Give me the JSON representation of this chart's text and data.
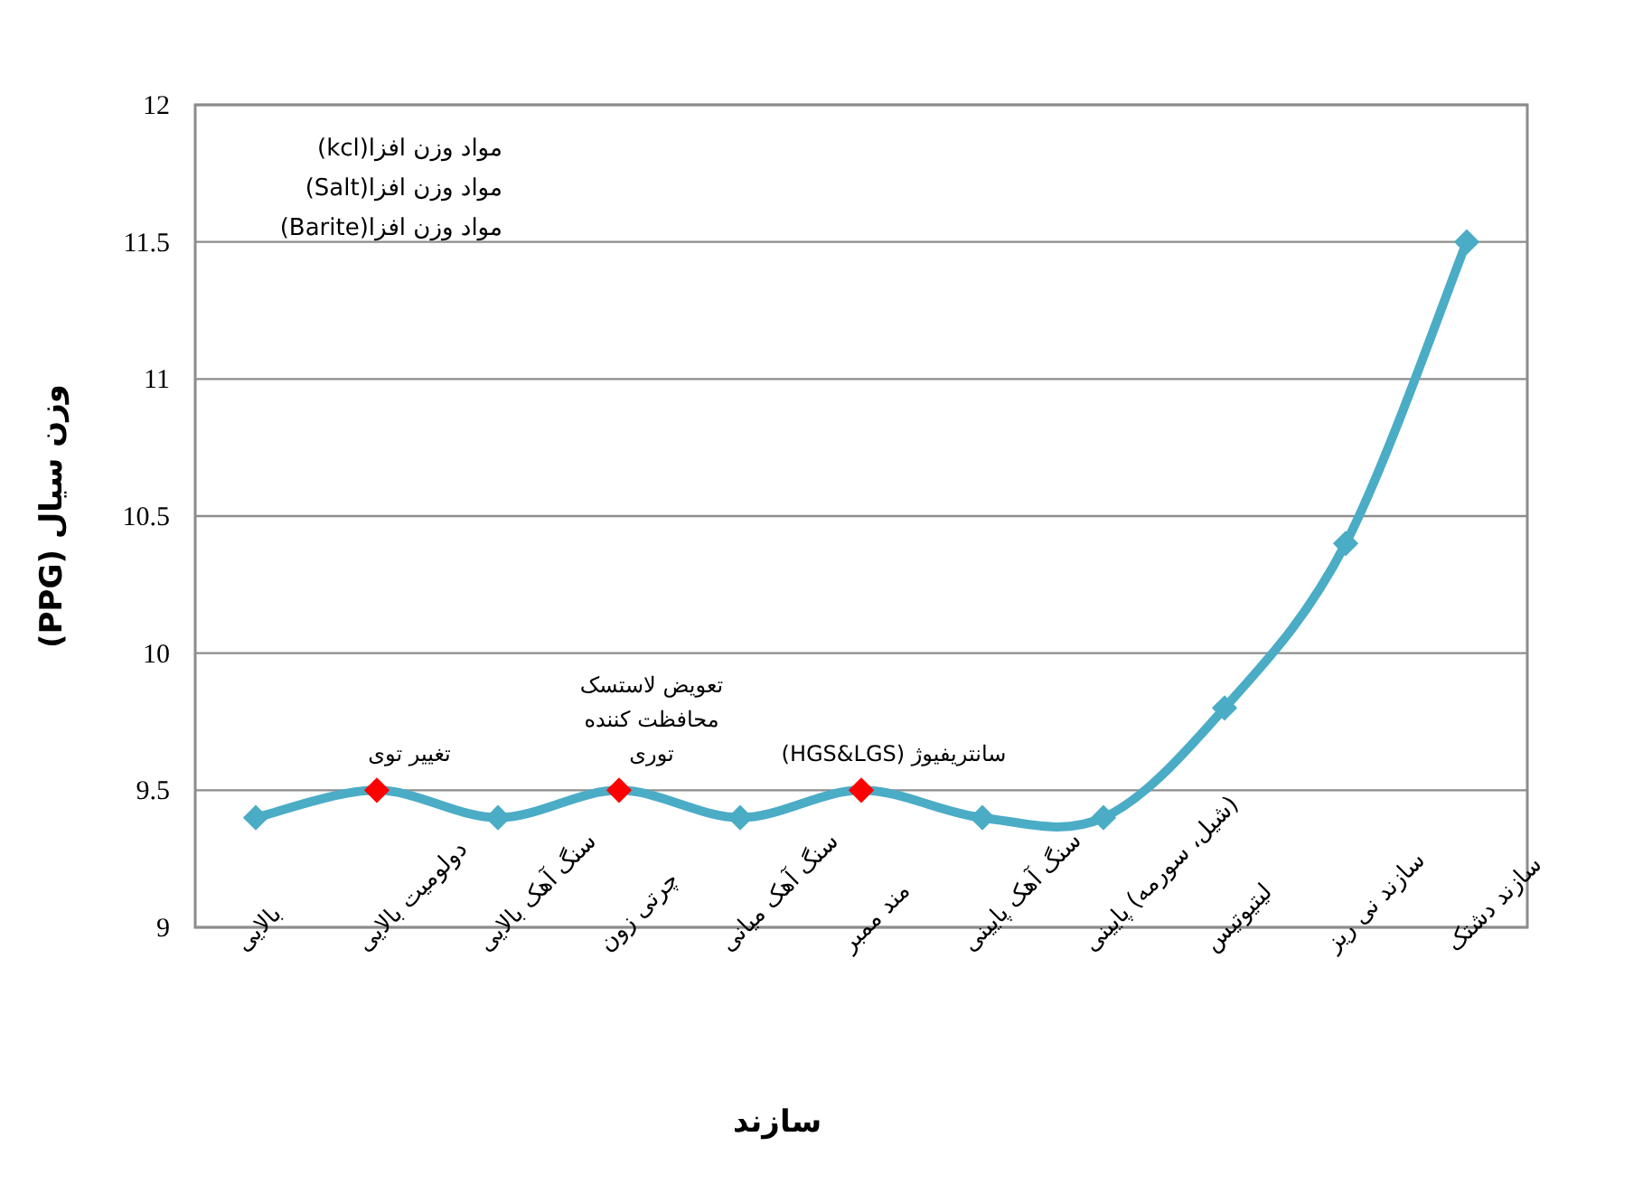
{
  "chart_data": {
    "type": "line",
    "xlabel": "سازند",
    "ylabel": "وزن سیال (PPG)",
    "categories": [
      "بالایی",
      "دولومیت بالایی",
      "سنگ آهک بالایی",
      "چرتی زون",
      "سنگ آهک میانی",
      "مند ممبر",
      "سنگ آهک پایینی",
      "(شیل، سورمه) پایینی",
      "لیتیوتیس",
      "سازند نی ریز",
      "سازند دشتک"
    ],
    "series": [
      {
        "color": "#4bacc6",
        "colors": [
          "#4bacc6",
          "#ff0000",
          "#4bacc6",
          "#ff0000",
          "#4bacc6",
          "#ff0000",
          "#4bacc6",
          "#4bacc6",
          "#4bacc6",
          "#4bacc6",
          "#4bacc6"
        ],
        "values": [
          9.4,
          9.5,
          9.4,
          9.5,
          9.4,
          9.5,
          9.4,
          9.4,
          9.8,
          10.4,
          11.5
        ]
      }
    ],
    "ylim": [
      9,
      12
    ],
    "yticks": [
      9,
      9.5,
      10,
      10.5,
      11,
      11.5,
      12
    ],
    "grid": "y",
    "marker": "diamond",
    "line_style": "solid",
    "annotations": [
      {
        "text": "تغییر توی",
        "x": "دولومیت بالایی",
        "y": 9.5
      },
      {
        "text": "تعویض لاستسک محافظت کننده توری",
        "x": "چرتی زون",
        "y": 9.5
      },
      {
        "text": "سانتریفیوژ (HGS&LGS)",
        "x": "مند ممبر",
        "y": 9.5
      },
      "مواد وزن افزا(kcl)",
      "مواد وزن افزا(Salt)",
      "مواد وزن افزا(Barite)"
    ]
  }
}
